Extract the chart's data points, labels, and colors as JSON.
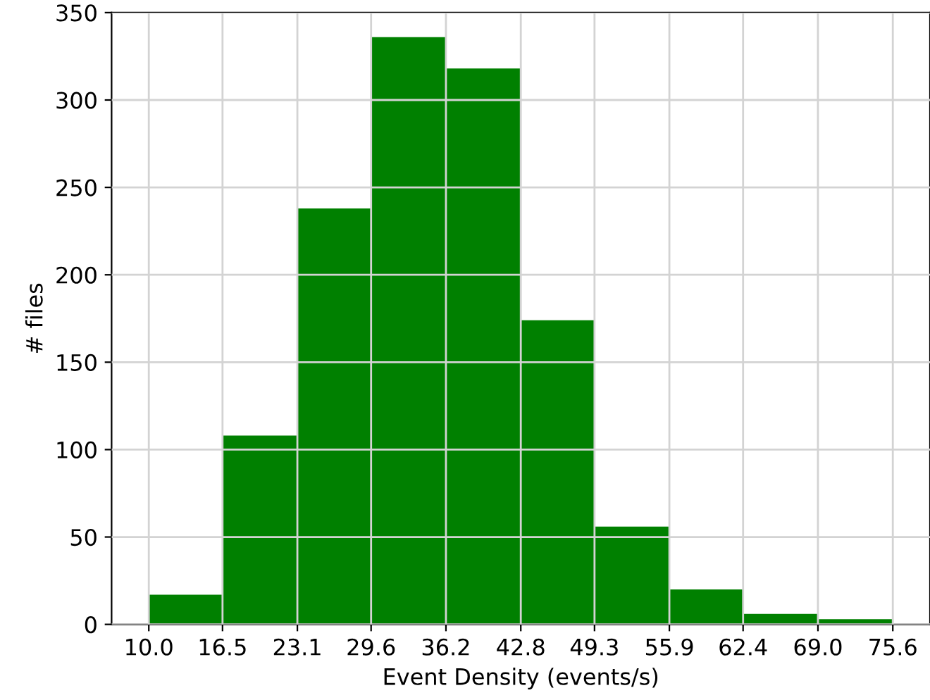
{
  "chart_data": {
    "type": "histogram",
    "xlabel": "Event Density (events/s)",
    "ylabel": "# files",
    "bins": [
      10.0,
      16.5,
      23.1,
      29.6,
      36.2,
      42.8,
      49.3,
      55.9,
      62.4,
      69.0,
      75.6
    ],
    "values": [
      17,
      108,
      238,
      336,
      318,
      174,
      56,
      20,
      6,
      3
    ],
    "color": "#008000",
    "xlim": [
      6.72,
      78.88
    ],
    "ylim": [
      0,
      350
    ],
    "xticks": [
      {
        "value": 10,
        "label": "10.0"
      },
      16.5,
      23.1,
      29.6,
      36.2,
      42.8,
      49.3,
      55.9,
      62.4,
      {
        "value": 69,
        "label": "69.0"
      },
      75.6
    ],
    "yticks": [
      0,
      50,
      100,
      150,
      200,
      250,
      300,
      350
    ],
    "grid": true
  }
}
